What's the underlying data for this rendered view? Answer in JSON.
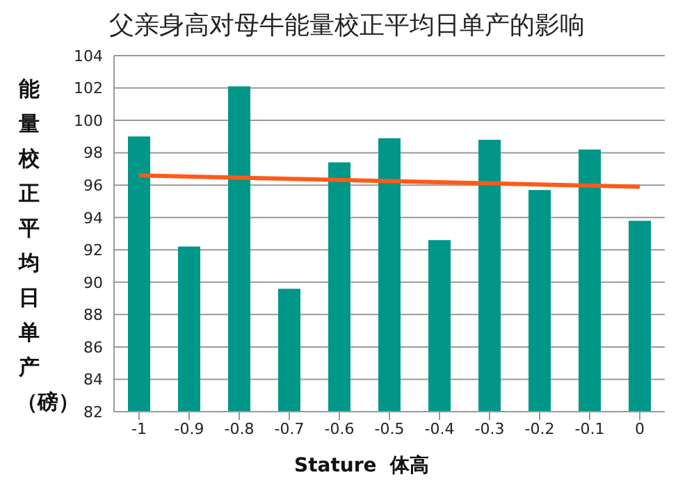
{
  "chart_data": {
    "type": "bar",
    "title": "父亲身高对母牛能量校正平均日单产的影响",
    "xlabel": "Stature  体高",
    "ylabel": "能量校正平均日单产（磅）",
    "categories": [
      "-1",
      "-0.9",
      "-0.8",
      "-0.7",
      "-0.6",
      "-0.5",
      "-0.4",
      "-0.3",
      "-0.2",
      "-0.1",
      "0"
    ],
    "series": [
      {
        "color": "#009688",
        "values": [
          99.0,
          92.2,
          102.1,
          89.6,
          97.4,
          98.9,
          92.6,
          98.8,
          95.7,
          98.2,
          93.8
        ]
      },
      {
        "type": "line",
        "color": "#ff5a1a",
        "x": [
          "-1",
          "0"
        ],
        "values": [
          96.6,
          95.9
        ]
      }
    ],
    "ylim": [
      82,
      104
    ],
    "yticks": [
      82,
      84,
      86,
      88,
      90,
      92,
      94,
      96,
      98,
      100,
      102,
      104
    ],
    "grid": "y",
    "legend": false
  }
}
